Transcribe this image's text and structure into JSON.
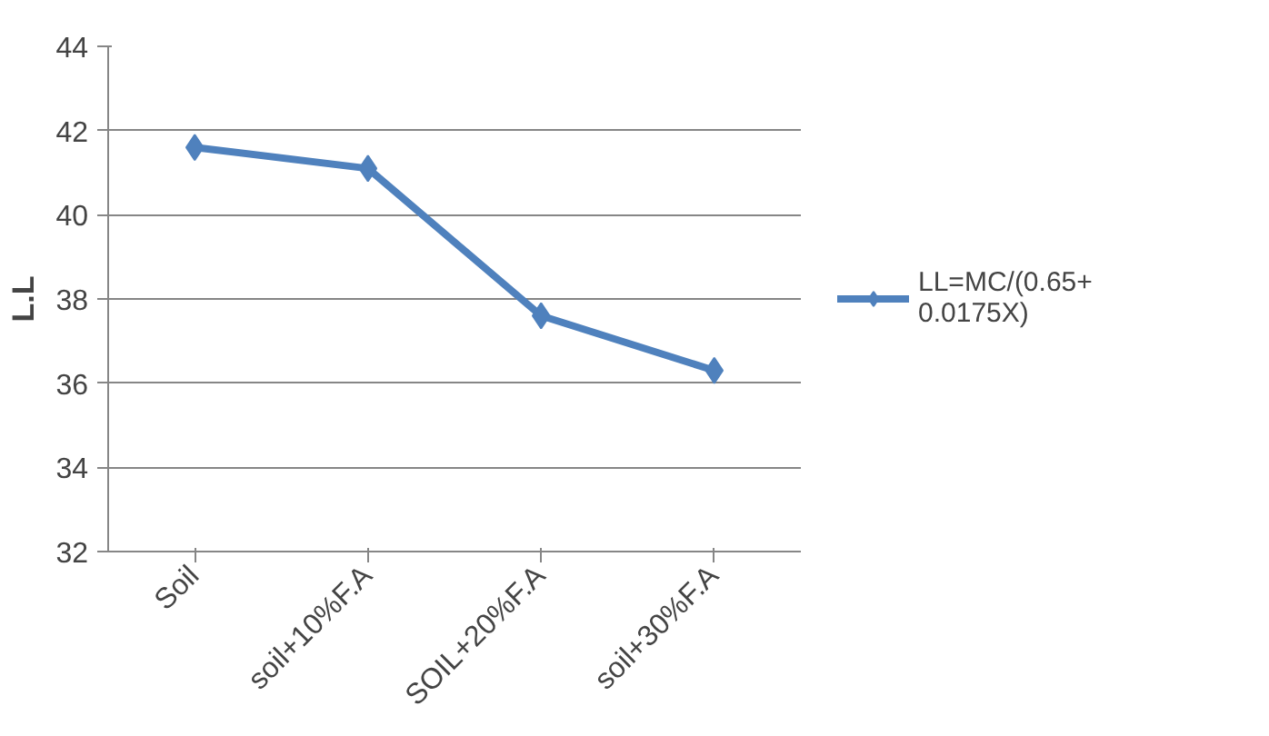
{
  "chart_data": {
    "type": "line",
    "ylabel": "L.L",
    "categories": [
      "Soil",
      "soil+10%F.A",
      "SOIL+20%F.A",
      "soil+30%F.A"
    ],
    "series": [
      {
        "name": "LL=MC/(0.65+0.0175X)",
        "color": "#4f81bd",
        "values": [
          41.6,
          41.1,
          37.6,
          36.3
        ]
      }
    ],
    "ylim": [
      32,
      44
    ],
    "yticks": [
      32,
      34,
      36,
      38,
      40,
      42,
      44
    ],
    "grid": "y",
    "legend": "right",
    "marker": "diamond",
    "line_style": "solid"
  }
}
